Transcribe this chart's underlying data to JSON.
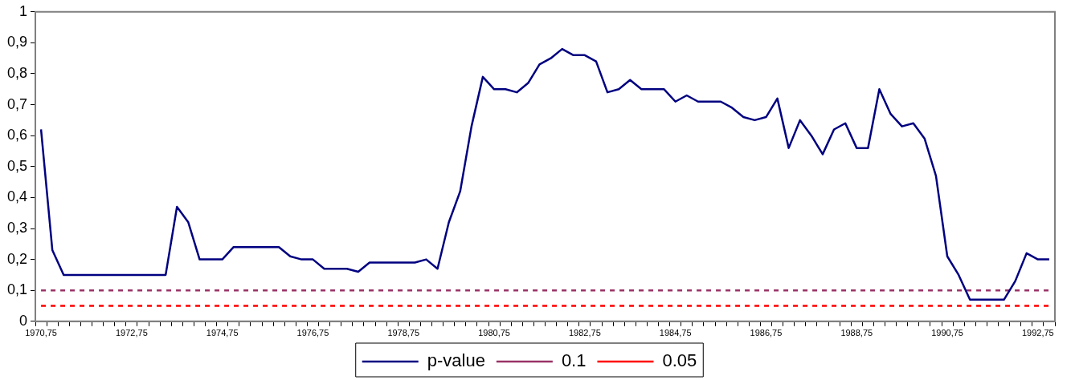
{
  "chart_data": {
    "type": "line",
    "categories": [
      "1970,75",
      null,
      null,
      null,
      null,
      null,
      null,
      null,
      "1972,75",
      null,
      null,
      null,
      null,
      null,
      null,
      null,
      "1974,75",
      null,
      null,
      null,
      null,
      null,
      null,
      null,
      "1976,75",
      null,
      null,
      null,
      null,
      null,
      null,
      null,
      "1978,75",
      null,
      null,
      null,
      null,
      null,
      null,
      null,
      "1980,75",
      null,
      null,
      null,
      null,
      null,
      null,
      null,
      "1982,75",
      null,
      null,
      null,
      null,
      null,
      null,
      null,
      "1984,75",
      null,
      null,
      null,
      null,
      null,
      null,
      null,
      "1986,75",
      null,
      null,
      null,
      null,
      null,
      null,
      null,
      "1988,75",
      null,
      null,
      null,
      null,
      null,
      null,
      null,
      "1990,75",
      null,
      null,
      null,
      null,
      null,
      null,
      null,
      "1992,75",
      null
    ],
    "series": [
      {
        "name": "p-value",
        "color": "#000080",
        "line_style": "solid",
        "values": [
          0.62,
          0.23,
          0.15,
          0.15,
          0.15,
          0.15,
          0.15,
          0.15,
          0.15,
          0.15,
          0.15,
          0.15,
          0.37,
          0.32,
          0.2,
          0.2,
          0.2,
          0.24,
          0.24,
          0.24,
          0.24,
          0.24,
          0.21,
          0.2,
          0.2,
          0.17,
          0.17,
          0.17,
          0.16,
          0.19,
          0.19,
          0.19,
          0.19,
          0.19,
          0.2,
          0.17,
          0.32,
          0.42,
          0.63,
          0.79,
          0.75,
          0.75,
          0.74,
          0.77,
          0.83,
          0.85,
          0.88,
          0.86,
          0.86,
          0.84,
          0.74,
          0.75,
          0.78,
          0.75,
          0.75,
          0.75,
          0.71,
          0.73,
          0.71,
          0.71,
          0.71,
          0.69,
          0.66,
          0.65,
          0.66,
          0.72,
          0.56,
          0.65,
          0.6,
          0.54,
          0.62,
          0.64,
          0.56,
          0.56,
          0.75,
          0.67,
          0.63,
          0.64,
          0.59,
          0.47,
          0.21,
          0.15,
          0.07,
          0.07,
          0.07,
          0.07,
          0.13,
          0.22,
          0.2,
          0.2
        ]
      },
      {
        "name": "0.1",
        "color": "#993366",
        "line_style": "dashed",
        "values": [
          0.1,
          0.1,
          0.1,
          0.1,
          0.1,
          0.1,
          0.1,
          0.1,
          0.1,
          0.1,
          0.1,
          0.1,
          0.1,
          0.1,
          0.1,
          0.1,
          0.1,
          0.1,
          0.1,
          0.1,
          0.1,
          0.1,
          0.1,
          0.1,
          0.1,
          0.1,
          0.1,
          0.1,
          0.1,
          0.1,
          0.1,
          0.1,
          0.1,
          0.1,
          0.1,
          0.1,
          0.1,
          0.1,
          0.1,
          0.1,
          0.1,
          0.1,
          0.1,
          0.1,
          0.1,
          0.1,
          0.1,
          0.1,
          0.1,
          0.1,
          0.1,
          0.1,
          0.1,
          0.1,
          0.1,
          0.1,
          0.1,
          0.1,
          0.1,
          0.1,
          0.1,
          0.1,
          0.1,
          0.1,
          0.1,
          0.1,
          0.1,
          0.1,
          0.1,
          0.1,
          0.1,
          0.1,
          0.1,
          0.1,
          0.1,
          0.1,
          0.1,
          0.1,
          0.1,
          0.1,
          0.1,
          0.1,
          0.1,
          0.1,
          0.1,
          0.1,
          0.1,
          0.1,
          0.1,
          0.1
        ]
      },
      {
        "name": "0.05",
        "color": "#ff0000",
        "line_style": "dashed",
        "values": [
          0.05,
          0.05,
          0.05,
          0.05,
          0.05,
          0.05,
          0.05,
          0.05,
          0.05,
          0.05,
          0.05,
          0.05,
          0.05,
          0.05,
          0.05,
          0.05,
          0.05,
          0.05,
          0.05,
          0.05,
          0.05,
          0.05,
          0.05,
          0.05,
          0.05,
          0.05,
          0.05,
          0.05,
          0.05,
          0.05,
          0.05,
          0.05,
          0.05,
          0.05,
          0.05,
          0.05,
          0.05,
          0.05,
          0.05,
          0.05,
          0.05,
          0.05,
          0.05,
          0.05,
          0.05,
          0.05,
          0.05,
          0.05,
          0.05,
          0.05,
          0.05,
          0.05,
          0.05,
          0.05,
          0.05,
          0.05,
          0.05,
          0.05,
          0.05,
          0.05,
          0.05,
          0.05,
          0.05,
          0.05,
          0.05,
          0.05,
          0.05,
          0.05,
          0.05,
          0.05,
          0.05,
          0.05,
          0.05,
          0.05,
          0.05,
          0.05,
          0.05,
          0.05,
          0.05,
          0.05,
          0.05,
          0.05,
          0.05,
          0.05,
          0.05,
          0.05,
          0.05,
          0.05,
          0.05,
          0.05
        ]
      }
    ],
    "ylim": [
      0,
      1
    ],
    "yticks": [
      0,
      {
        "value": 0.1,
        "label": "0,1"
      },
      {
        "value": 0.2,
        "label": "0,2"
      },
      {
        "value": 0.3,
        "label": "0,3"
      },
      {
        "value": 0.4,
        "label": "0,4"
      },
      {
        "value": 0.5,
        "label": "0,5"
      },
      {
        "value": 0.6,
        "label": "0,6"
      },
      {
        "value": 0.7,
        "label": "0,7"
      },
      {
        "value": 0.8,
        "label": "0,8"
      },
      {
        "value": 0.9,
        "label": "0,9"
      },
      1
    ],
    "legend": "bottom",
    "marker": "none"
  }
}
